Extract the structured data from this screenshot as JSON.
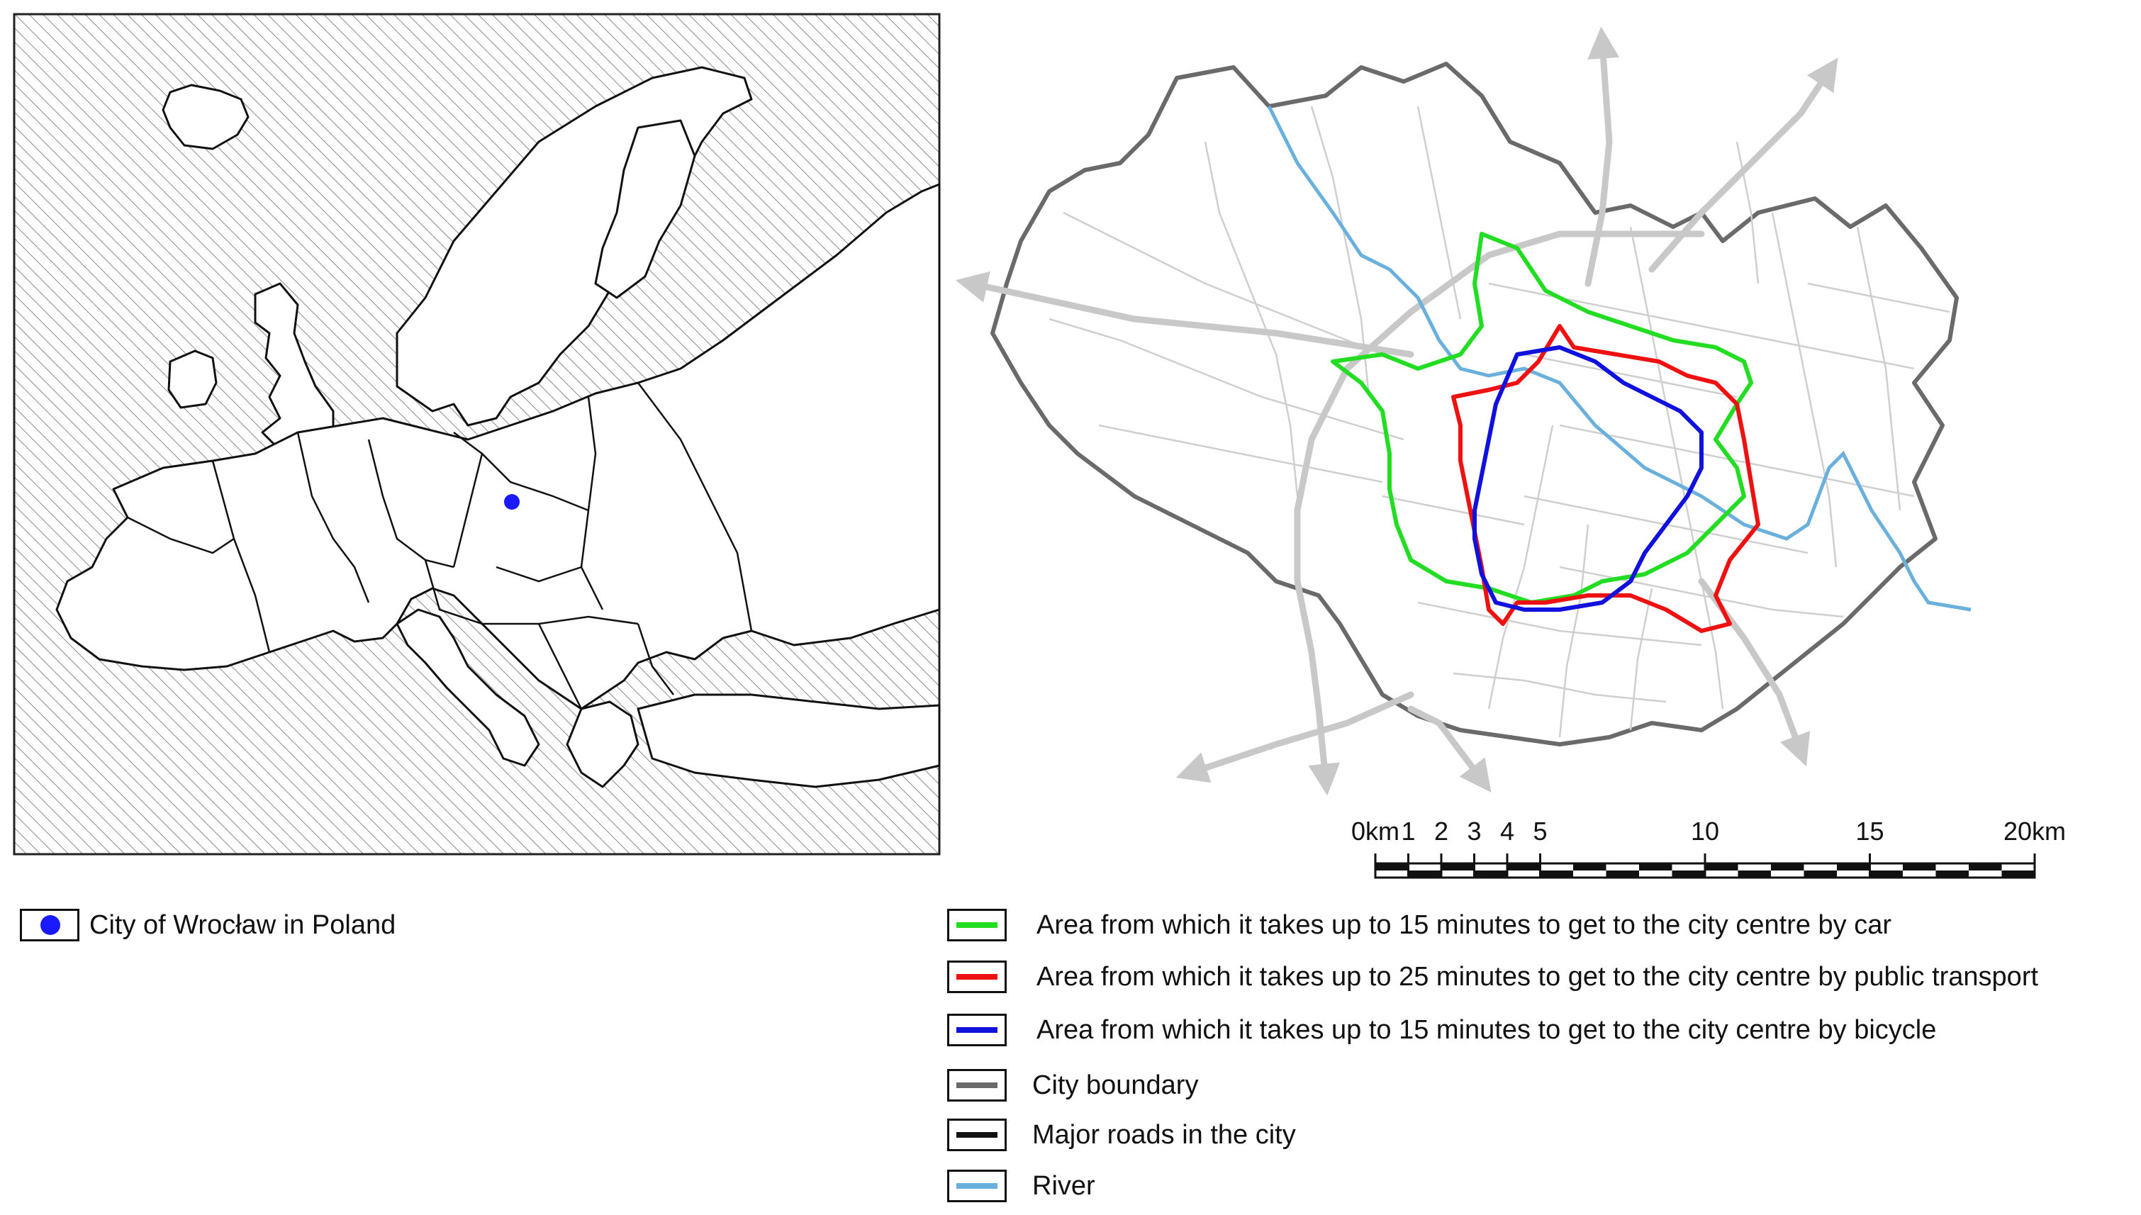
{
  "colors": {
    "location_dot": "#1a1aff",
    "car": "#22dd22",
    "public_transport": "#ee1111",
    "bicycle": "#1111dd",
    "city_boundary": "#6a6a6a",
    "major_roads": "#111111",
    "river": "#6ab0dc",
    "road_network": "#cfcfcf",
    "main_roads": "#c8c8c8"
  },
  "scale_bar": {
    "labels": [
      "0km",
      "1",
      "2",
      "3",
      "4",
      "5",
      "10",
      "15",
      "20km"
    ],
    "values_km": [
      0,
      1,
      2,
      3,
      4,
      5,
      10,
      15,
      20
    ]
  },
  "europe_legend": {
    "label": "City of Wrocław in Poland",
    "icon": "blue-dot-icon"
  },
  "map_legend": [
    {
      "label": "Area from which it takes up to 15 minutes to get to the city centre by car",
      "color_key": "car"
    },
    {
      "label": "Area from which it takes up to 25 minutes to get to the city centre by public transport",
      "color_key": "public_transport"
    },
    {
      "label": "Area from which it takes up to 15 minutes to get to the city centre by bicycle",
      "color_key": "bicycle"
    },
    {
      "label": "City boundary",
      "color_key": "city_boundary"
    },
    {
      "label": "Major roads in the city",
      "color_key": "major_roads"
    },
    {
      "label": "River",
      "color_key": "river"
    }
  ]
}
